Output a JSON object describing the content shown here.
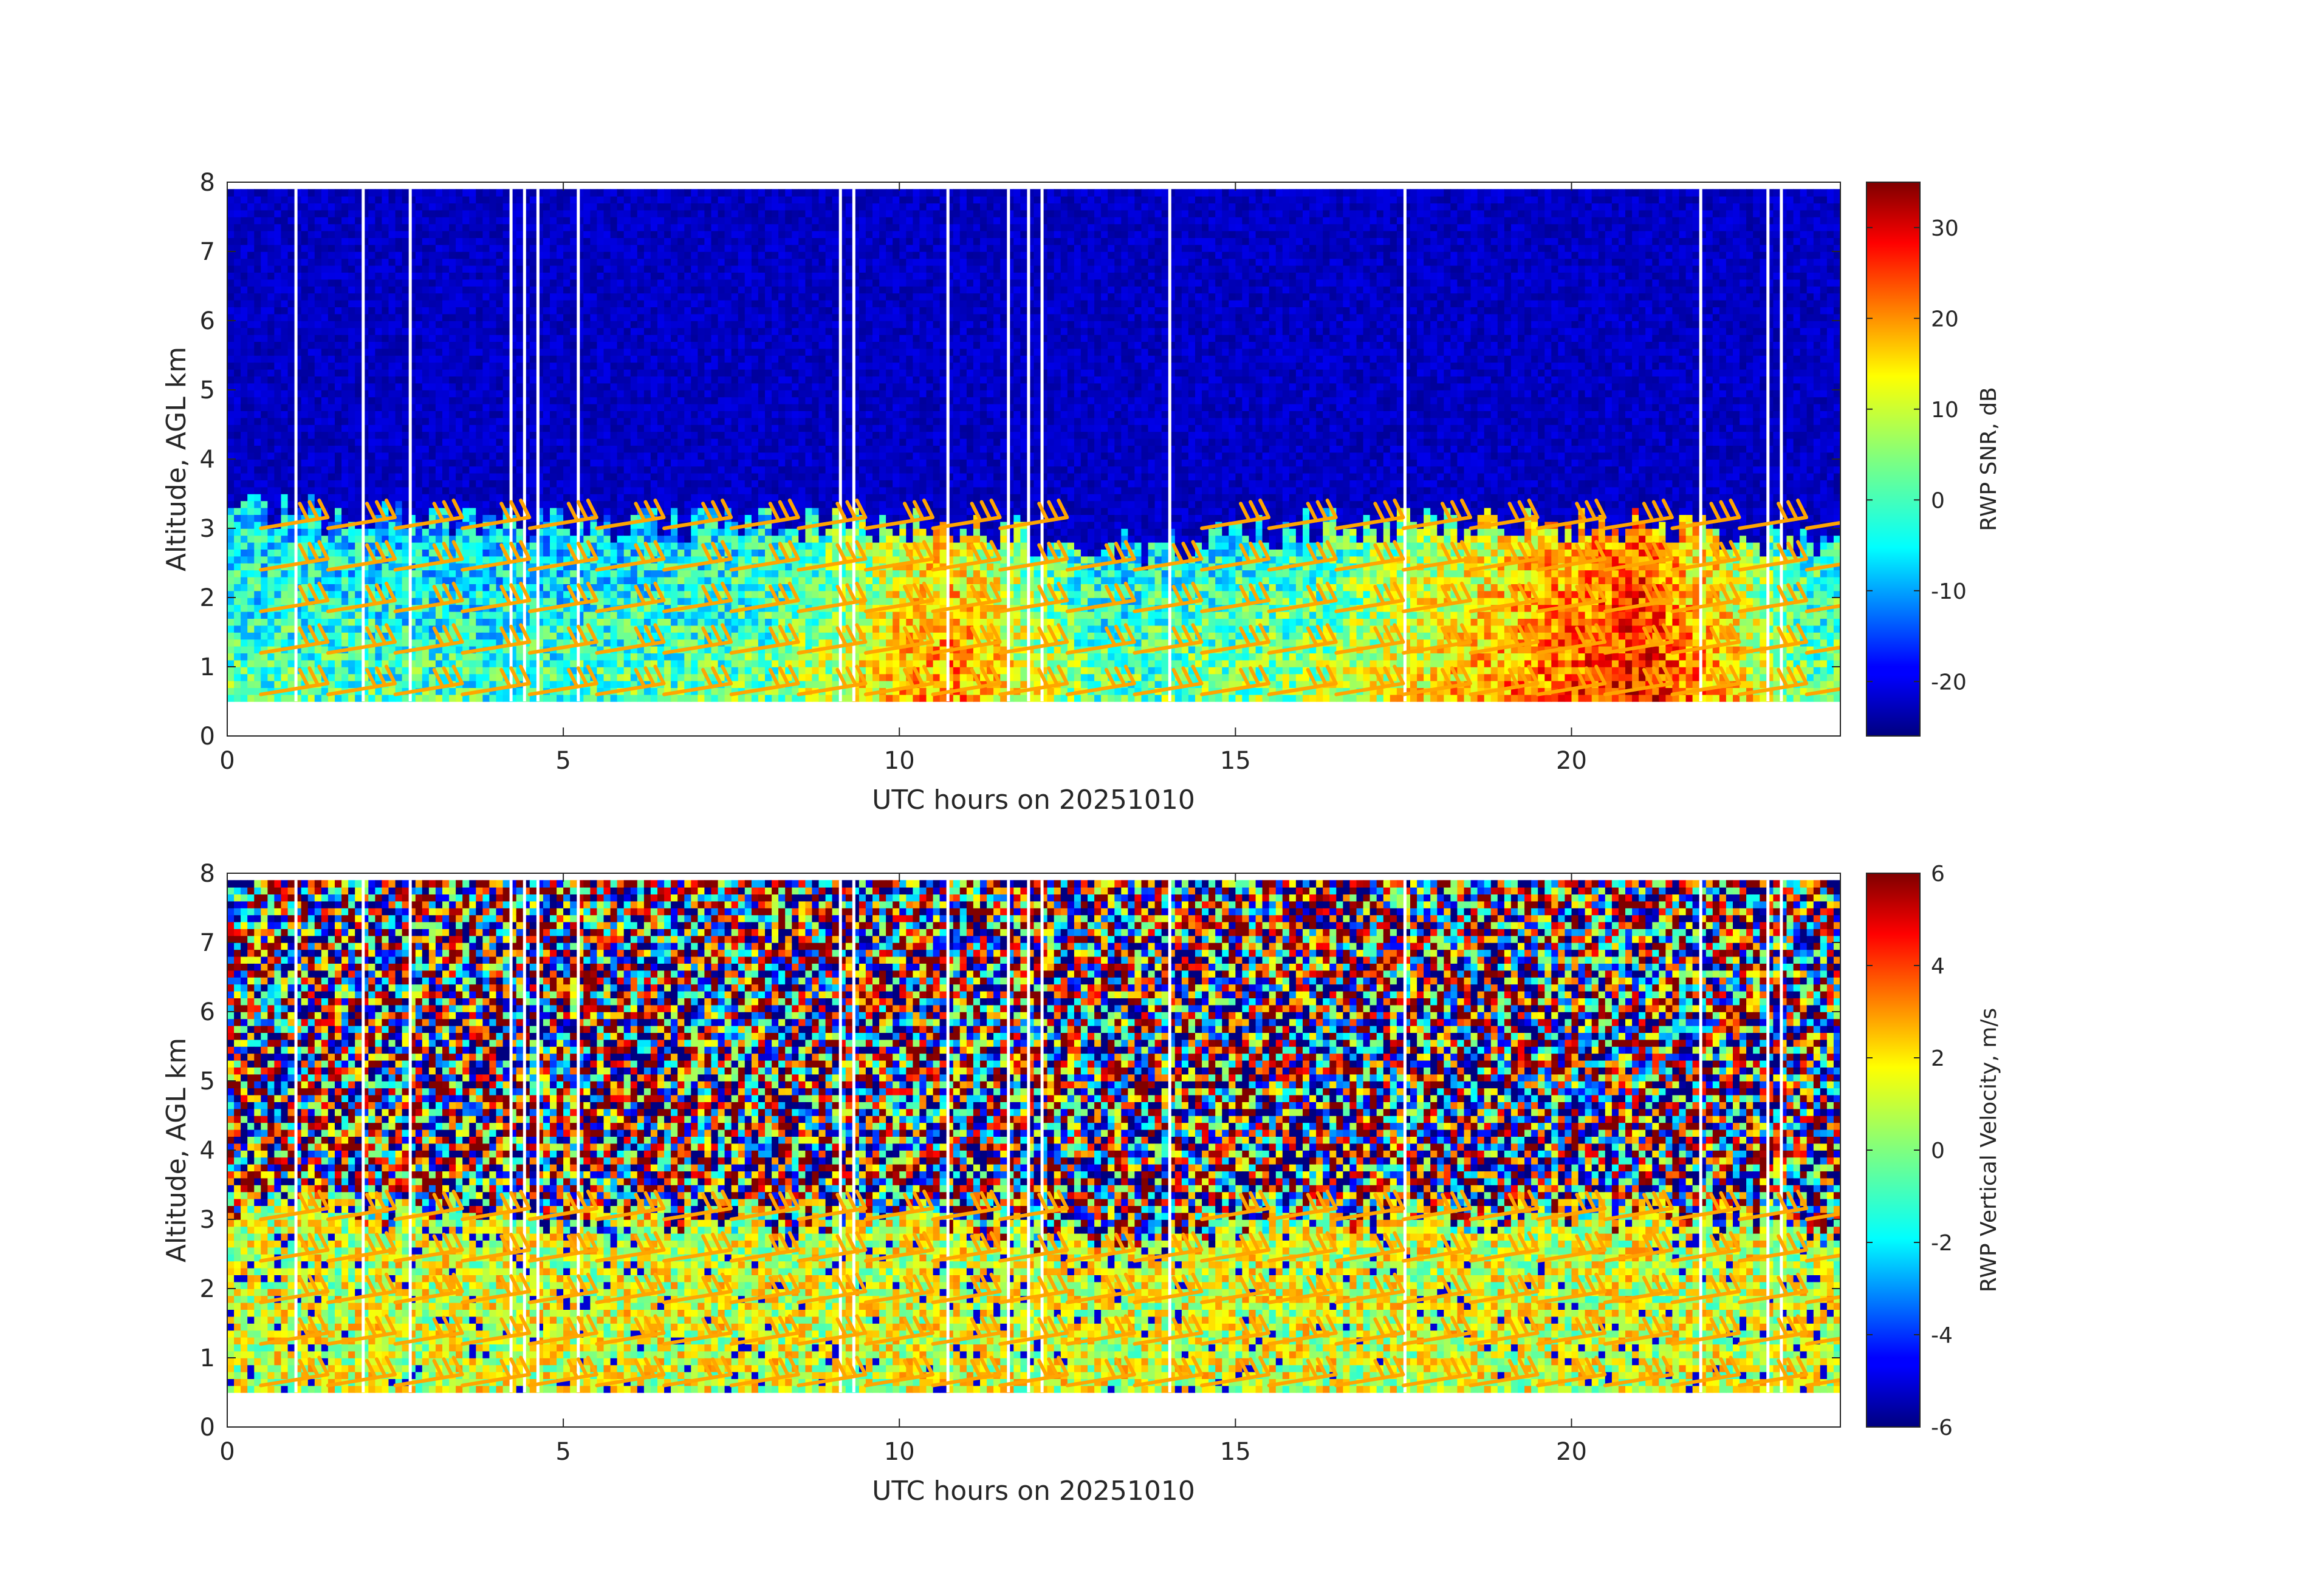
{
  "chart_data": [
    {
      "type": "heatmap",
      "panel": "top",
      "xlabel": "UTC hours on 20251010",
      "ylabel": "Altitude, AGL km",
      "xlim": [
        0,
        24
      ],
      "ylim": [
        0,
        8
      ],
      "xticks": [
        0,
        5,
        10,
        15,
        20
      ],
      "yticks": [
        0,
        1,
        2,
        3,
        4,
        5,
        6,
        7,
        8
      ],
      "colorbar": {
        "label": "RWP SNR, dB",
        "colormap": "jet",
        "range": [
          -26,
          35
        ],
        "ticks": [
          -20,
          -10,
          0,
          10,
          20,
          30
        ]
      },
      "data_altitude_range_km": [
        0.5,
        7.9
      ],
      "data_gaps_hours": [
        1.0,
        2.0,
        2.7,
        4.2,
        4.4,
        4.6,
        5.2,
        9.1,
        9.3,
        10.7,
        11.6,
        11.9,
        12.1,
        14.0,
        17.5,
        21.9,
        22.9,
        23.1
      ],
      "description_points": [
        {
          "hour": 1.0,
          "echo_top_km": 3.2,
          "mean_low_snr_db": 2
        },
        {
          "hour": 4.0,
          "echo_top_km": 3.0,
          "mean_low_snr_db": 0
        },
        {
          "hour": 8.0,
          "echo_top_km": 3.0,
          "mean_low_snr_db": 4
        },
        {
          "hour": 10.7,
          "echo_top_km": 3.0,
          "mean_low_snr_db": 20
        },
        {
          "hour": 13.0,
          "echo_top_km": 2.6,
          "mean_low_snr_db": 2
        },
        {
          "hour": 16.0,
          "echo_top_km": 3.0,
          "mean_low_snr_db": 6
        },
        {
          "hour": 21.0,
          "echo_top_km": 3.0,
          "mean_low_snr_db": 28
        },
        {
          "hour": 23.5,
          "echo_top_km": 2.8,
          "mean_low_snr_db": 4
        }
      ],
      "wind_barb_color": "#ffa500"
    },
    {
      "type": "heatmap",
      "panel": "bottom",
      "xlabel": "UTC hours on 20251010",
      "ylabel": "Altitude, AGL km",
      "xlim": [
        0,
        24
      ],
      "ylim": [
        0,
        8
      ],
      "xticks": [
        0,
        5,
        10,
        15,
        20
      ],
      "yticks": [
        0,
        1,
        2,
        3,
        4,
        5,
        6,
        7,
        8
      ],
      "colorbar": {
        "label": "RWP Vertical Velocity, m/s",
        "colormap": "jet",
        "range": [
          -6,
          6
        ],
        "ticks": [
          -6,
          -4,
          -2,
          0,
          2,
          4,
          6
        ]
      },
      "data_altitude_range_km": [
        0.5,
        7.9
      ],
      "wind_barb_color": "#ffa500"
    }
  ],
  "wind_barbs": {
    "color": "#ffa500",
    "hours": [
      0.5,
      1.5,
      2.5,
      3.5,
      4.5,
      5.5,
      6.5,
      7.5,
      8.5,
      9.5,
      10.5,
      11.5,
      12.5,
      13.5,
      14.5,
      15.5,
      16.5,
      17.5,
      18.5,
      19.5,
      20.5,
      21.5,
      22.5,
      23.5
    ],
    "altitudes_km": [
      0.6,
      1.2,
      1.8,
      2.4,
      3.0
    ]
  }
}
